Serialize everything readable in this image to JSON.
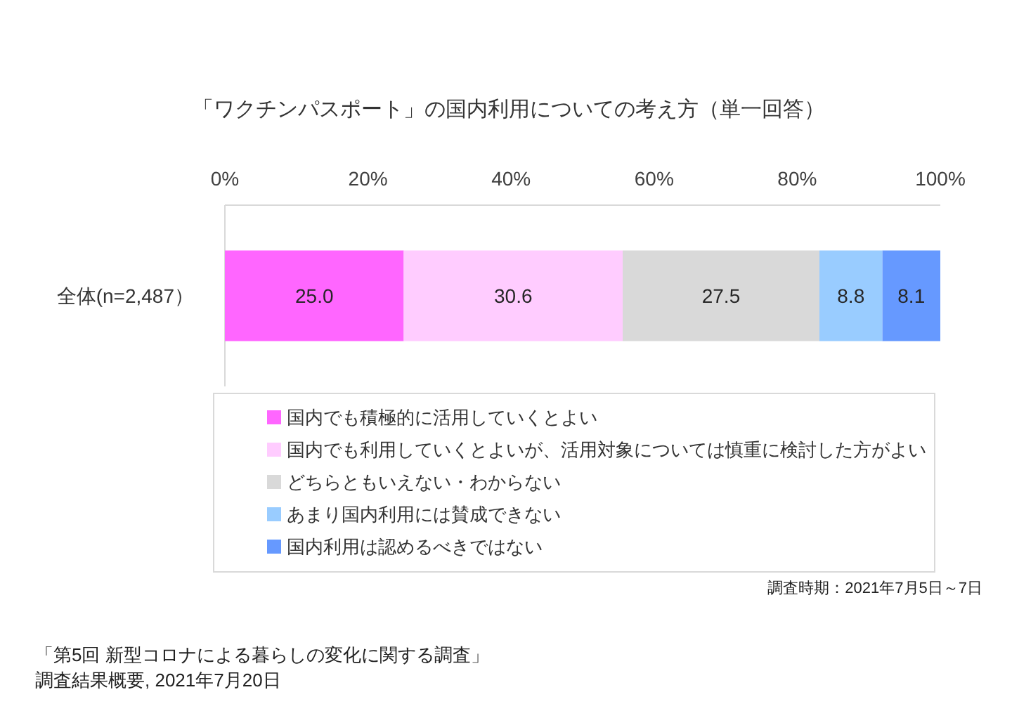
{
  "chart_data": {
    "type": "bar",
    "orientation": "horizontal",
    "stacked": true,
    "title": "「ワクチンパスポート」の国内利用についての考え方（単一回答）",
    "categories": [
      "全体(n=2,487）"
    ],
    "xlim": [
      0,
      100
    ],
    "xticks": [
      {
        "value": 0,
        "label": "0%"
      },
      {
        "value": 20,
        "label": "20%"
      },
      {
        "value": 40,
        "label": "40%"
      },
      {
        "value": 60,
        "label": "60%"
      },
      {
        "value": 80,
        "label": "80%"
      },
      {
        "value": 100,
        "label": "100%"
      }
    ],
    "legend": "bottom",
    "series": [
      {
        "name": "国内でも積極的に活用していくとよい",
        "color": "#ff66ff",
        "values": [
          25.0
        ],
        "value_labels": [
          "25.0"
        ]
      },
      {
        "name": "国内でも利用していくとよいが、活用対象については慎重に検討した方がよい",
        "color": "#ffccff",
        "values": [
          30.6
        ],
        "value_labels": [
          "30.6"
        ]
      },
      {
        "name": "どちらともいえない・わからない",
        "color": "#d9d9d9",
        "values": [
          27.5
        ],
        "value_labels": [
          "27.5"
        ]
      },
      {
        "name": "あまり国内利用には賛成できない",
        "color": "#99ccff",
        "values": [
          8.8
        ],
        "value_labels": [
          "8.8"
        ]
      },
      {
        "name": "国内利用は認めるべきではない",
        "color": "#6699ff",
        "values": [
          8.1
        ],
        "value_labels": [
          "8.1"
        ]
      }
    ],
    "annotations": [
      "調査時期：2021年7月5日～7日",
      "「第5回 新型コロナによる暮らしの変化に関する調査」",
      "調査結果概要, 2021年7月20日"
    ]
  }
}
